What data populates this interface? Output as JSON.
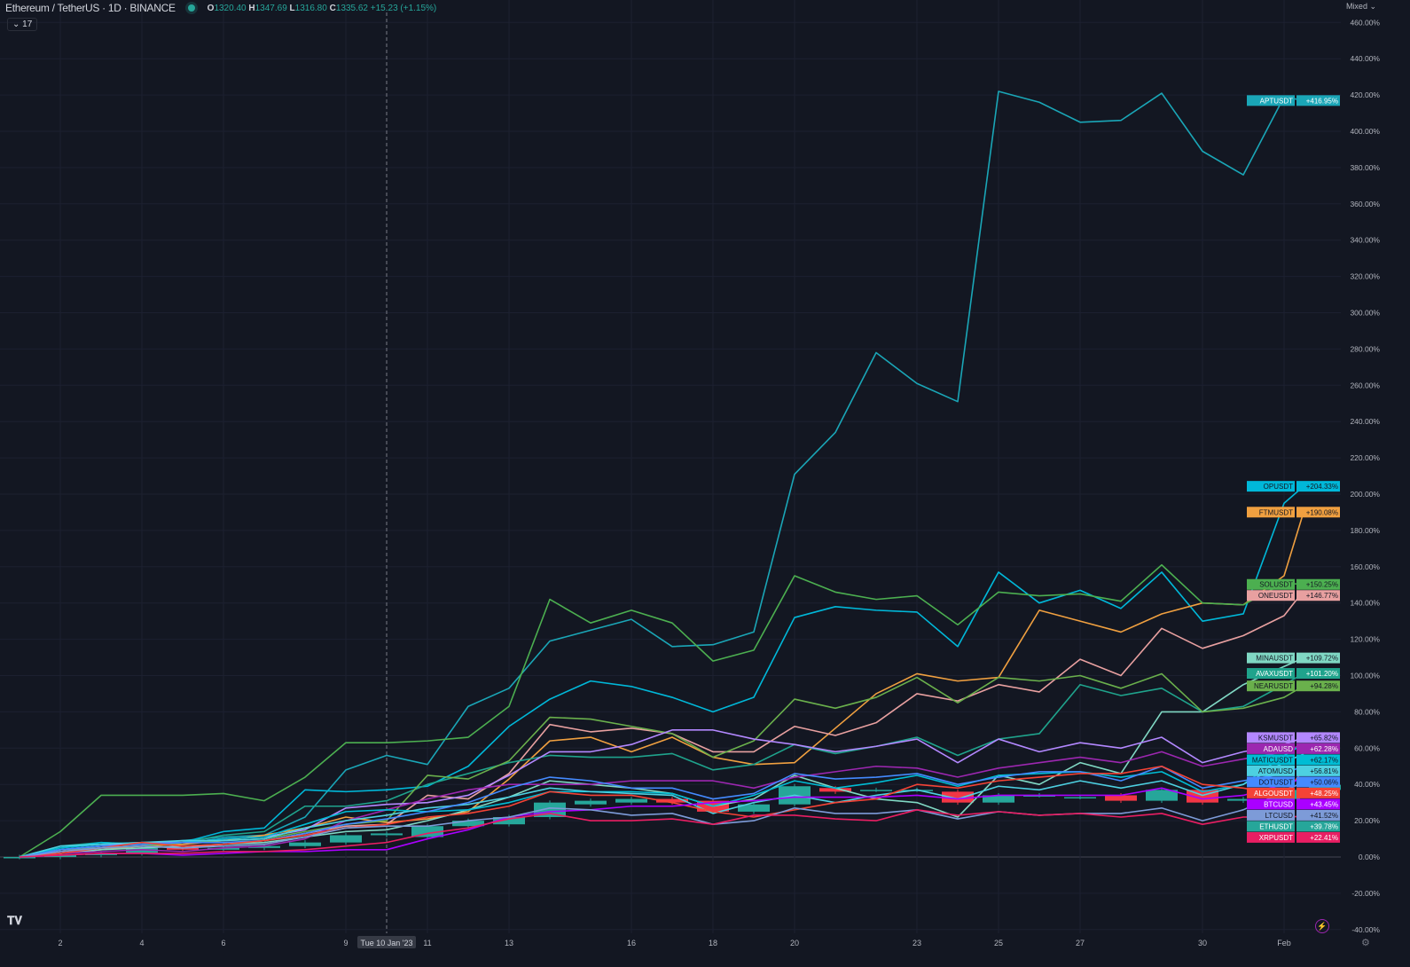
{
  "header": {
    "title": "Ethereum / TetherUS · 1D · BINANCE",
    "o_label": "O",
    "o": "1320.40",
    "h_label": "H",
    "h": "1347.69",
    "l_label": "L",
    "l": "1316.80",
    "c_label": "C",
    "c": "1335.62",
    "change": "+15.23 (+1.15%)",
    "collapse_count": "17"
  },
  "scale_mode": "Mixed",
  "logo": "TV",
  "colors": {
    "background": "#131722",
    "grid": "#1c2030",
    "up": "#26a69a",
    "down": "#f23645"
  },
  "chart_data": {
    "type": "line",
    "title": "",
    "xlabel": "",
    "ylabel": "",
    "y_unit": "%",
    "ylim": [
      -40,
      460
    ],
    "y_ticks": [
      -40,
      -20,
      0,
      20,
      40,
      60,
      80,
      100,
      120,
      140,
      160,
      180,
      200,
      220,
      240,
      260,
      280,
      300,
      320,
      340,
      360,
      380,
      400,
      420,
      440,
      460
    ],
    "grid": true,
    "x": [
      "Jan 1",
      "Jan 2",
      "Jan 3",
      "Jan 4",
      "Jan 5",
      "Jan 6",
      "Jan 7",
      "Jan 8",
      "Jan 9",
      "Jan 10",
      "Jan 11",
      "Jan 12",
      "Jan 13",
      "Jan 14",
      "Jan 15",
      "Jan 16",
      "Jan 17",
      "Jan 18",
      "Jan 19",
      "Jan 20",
      "Jan 21",
      "Jan 22",
      "Jan 23",
      "Jan 24",
      "Jan 25",
      "Jan 26",
      "Jan 27",
      "Jan 28",
      "Jan 29",
      "Jan 30",
      "Jan 31",
      "Feb 1",
      "Feb 2"
    ],
    "x_tick_labels": [
      {
        "index": 1,
        "label": "2"
      },
      {
        "index": 3,
        "label": "4"
      },
      {
        "index": 5,
        "label": "6"
      },
      {
        "index": 8,
        "label": "9"
      },
      {
        "index": 10,
        "label": "11"
      },
      {
        "index": 12,
        "label": "13"
      },
      {
        "index": 15,
        "label": "16"
      },
      {
        "index": 17,
        "label": "18"
      },
      {
        "index": 19,
        "label": "20"
      },
      {
        "index": 22,
        "label": "23"
      },
      {
        "index": 24,
        "label": "25"
      },
      {
        "index": 26,
        "label": "27"
      },
      {
        "index": 29,
        "label": "30"
      },
      {
        "index": 31,
        "label": "Feb"
      }
    ],
    "crosshair": {
      "index": 9,
      "label": "Tue 10 Jan '23"
    },
    "series": [
      {
        "name": "APTUSDT",
        "label": "+416.95%",
        "color": "#1aa6b7",
        "values": [
          0,
          4,
          6,
          7,
          9,
          11,
          12,
          22,
          48,
          56,
          51,
          83,
          93,
          119,
          125,
          131,
          116,
          117,
          124,
          211,
          234,
          278,
          261,
          251,
          422,
          416,
          405,
          406,
          421,
          389,
          376,
          419,
          416.95
        ]
      },
      {
        "name": "OPUSDT",
        "label": "+204.33%",
        "color": "#00b8d9",
        "values": [
          0,
          5,
          7,
          8,
          8,
          14,
          16,
          37,
          36,
          37,
          39,
          50,
          72,
          87,
          97,
          94,
          88,
          80,
          88,
          132,
          138,
          136,
          135,
          116,
          157,
          140,
          147,
          137,
          157,
          130,
          134,
          195,
          204.33
        ]
      },
      {
        "name": "FTMUSDT",
        "label": "+190.08%",
        "color": "#f0a040",
        "values": [
          0,
          2,
          4,
          6,
          7,
          9,
          12,
          16,
          22,
          19,
          21,
          25,
          43,
          64,
          66,
          58,
          66,
          55,
          51,
          52,
          71,
          90,
          101,
          97,
          99,
          136,
          130,
          124,
          134,
          140,
          139,
          155,
          190.08
        ]
      },
      {
        "name": "SOLUSDT",
        "label": "+150.25%",
        "color": "#4caf50",
        "values": [
          0,
          14,
          34,
          34,
          34,
          35,
          31,
          44,
          63,
          63,
          64,
          66,
          83,
          142,
          129,
          136,
          129,
          108,
          114,
          155,
          146,
          142,
          144,
          128,
          146,
          144,
          145,
          141,
          161,
          140,
          139,
          151,
          150.25
        ]
      },
      {
        "name": "ONEUSDT",
        "label": "+146.77%",
        "color": "#e8a0a0",
        "values": [
          0,
          3,
          5,
          6,
          5,
          7,
          9,
          13,
          17,
          18,
          34,
          32,
          46,
          73,
          69,
          71,
          68,
          58,
          58,
          72,
          67,
          74,
          90,
          86,
          95,
          91,
          109,
          100,
          126,
          115,
          122,
          133,
          146.77
        ]
      },
      {
        "name": "MINAUSDT",
        "label": "+109.72%",
        "color": "#80d8c4",
        "values": [
          0,
          2,
          4,
          5,
          6,
          7,
          8,
          11,
          14,
          15,
          20,
          26,
          33,
          42,
          40,
          38,
          35,
          28,
          32,
          45,
          38,
          32,
          30,
          22,
          45,
          40,
          52,
          46,
          80,
          80,
          95,
          105,
          109.72
        ]
      },
      {
        "name": "AVAXUSDT",
        "label": "+101.20%",
        "color": "#1fa38c",
        "values": [
          0,
          6,
          8,
          7,
          8,
          12,
          14,
          28,
          28,
          31,
          40,
          46,
          52,
          56,
          55,
          55,
          57,
          48,
          51,
          62,
          57,
          61,
          66,
          56,
          65,
          68,
          95,
          89,
          93,
          80,
          83,
          95,
          101.2
        ]
      },
      {
        "name": "NEARUSDT",
        "label": "+94.28%",
        "color": "#6ab04c",
        "values": [
          0,
          4,
          5,
          6,
          8,
          9,
          10,
          14,
          18,
          20,
          45,
          43,
          53,
          77,
          76,
          72,
          68,
          55,
          64,
          87,
          82,
          88,
          99,
          85,
          99,
          97,
          100,
          93,
          101,
          80,
          82,
          88,
          94.28
        ]
      },
      {
        "name": "KSMUSDT",
        "label": "+65.82%",
        "color": "#b388ff",
        "values": [
          0,
          4,
          6,
          8,
          8,
          10,
          11,
          15,
          27,
          29,
          30,
          34,
          45,
          58,
          58,
          62,
          70,
          70,
          65,
          62,
          58,
          61,
          65,
          52,
          65,
          58,
          63,
          60,
          66,
          52,
          58,
          62,
          65.82
        ]
      },
      {
        "name": "ADAUSD",
        "label": "+62.28%",
        "color": "#9c27b0",
        "values": [
          0,
          2,
          3,
          4,
          3,
          5,
          6,
          10,
          20,
          26,
          32,
          37,
          40,
          40,
          40,
          42,
          42,
          42,
          38,
          44,
          47,
          50,
          49,
          44,
          49,
          52,
          55,
          52,
          58,
          50,
          54,
          58,
          62.28
        ]
      },
      {
        "name": "MATICUSDT",
        "label": "+62.17%",
        "color": "#00bcd4",
        "values": [
          0,
          5,
          8,
          7,
          8,
          10,
          11,
          18,
          25,
          26,
          25,
          26,
          30,
          36,
          36,
          36,
          35,
          28,
          34,
          42,
          38,
          41,
          45,
          39,
          45,
          46,
          47,
          44,
          47,
          36,
          40,
          56,
          62.17
        ]
      },
      {
        "name": "ATOMUSD",
        "label": "+56.81%",
        "color": "#4dd0e1",
        "values": [
          0,
          6,
          7,
          8,
          9,
          9,
          10,
          16,
          20,
          23,
          27,
          29,
          33,
          38,
          36,
          35,
          34,
          24,
          30,
          34,
          30,
          34,
          37,
          32,
          39,
          37,
          42,
          38,
          42,
          34,
          40,
          52,
          56.81
        ]
      },
      {
        "name": "DOTUSDT",
        "label": "+50.06%",
        "color": "#448aff",
        "values": [
          0,
          4,
          6,
          7,
          8,
          8,
          9,
          13,
          18,
          21,
          25,
          30,
          38,
          44,
          42,
          38,
          38,
          32,
          35,
          46,
          43,
          44,
          46,
          40,
          44,
          47,
          47,
          42,
          50,
          38,
          42,
          46,
          50.06
        ]
      },
      {
        "name": "ALGOUSDT",
        "label": "+48.25%",
        "color": "#f44336",
        "values": [
          0,
          2,
          5,
          8,
          6,
          7,
          9,
          12,
          16,
          18,
          22,
          24,
          28,
          36,
          34,
          34,
          30,
          25,
          22,
          26,
          30,
          32,
          40,
          38,
          42,
          44,
          46,
          46,
          50,
          40,
          38,
          34,
          48.25
        ]
      },
      {
        "name": "BTCUSD",
        "label": "+43.45%",
        "color": "#aa00ff",
        "values": [
          0,
          1,
          2,
          2,
          1,
          2,
          3,
          3,
          4,
          4,
          10,
          15,
          22,
          25,
          26,
          28,
          28,
          30,
          31,
          33,
          33,
          33,
          34,
          32,
          34,
          34,
          34,
          34,
          38,
          32,
          34,
          40,
          43.45
        ]
      },
      {
        "name": "LTCUSD",
        "label": "+41.52%",
        "color": "#7d9bd8",
        "values": [
          0,
          3,
          5,
          6,
          5,
          6,
          7,
          11,
          16,
          17,
          17,
          20,
          22,
          27,
          26,
          23,
          24,
          18,
          20,
          27,
          24,
          24,
          26,
          21,
          25,
          23,
          24,
          24,
          27,
          20,
          26,
          36,
          41.52
        ]
      },
      {
        "name": "XRPUSDT",
        "label": "+22.41%",
        "color": "#e91e63",
        "values": [
          0,
          1,
          2,
          2,
          2,
          3,
          3,
          4,
          6,
          8,
          13,
          16,
          21,
          24,
          20,
          20,
          21,
          18,
          23,
          23,
          21,
          20,
          26,
          23,
          25,
          23,
          24,
          22,
          24,
          18,
          22,
          22,
          22.41
        ]
      }
    ],
    "main_series": {
      "name": "ETHUSDT",
      "label": "+39.78%",
      "type": "candlestick",
      "color": "#26a69a",
      "candles": [
        {
          "o": 0,
          "c": 0
        },
        {
          "o": 0,
          "c": 1
        },
        {
          "o": 1,
          "c": 2
        },
        {
          "o": 2,
          "c": 5
        },
        {
          "o": 5,
          "c": 4
        },
        {
          "o": 4,
          "c": 5
        },
        {
          "o": 5,
          "c": 6
        },
        {
          "o": 6,
          "c": 8
        },
        {
          "o": 8,
          "c": 12
        },
        {
          "o": 12,
          "c": 13
        },
        {
          "o": 11,
          "c": 17
        },
        {
          "o": 17,
          "c": 20
        },
        {
          "o": 18,
          "c": 22
        },
        {
          "o": 22,
          "c": 30
        },
        {
          "o": 29,
          "c": 31
        },
        {
          "o": 30,
          "c": 32
        },
        {
          "o": 32,
          "c": 30
        },
        {
          "o": 31,
          "c": 25
        },
        {
          "o": 25,
          "c": 29
        },
        {
          "o": 29,
          "c": 39
        },
        {
          "o": 38,
          "c": 36
        },
        {
          "o": 37,
          "c": 37
        },
        {
          "o": 37,
          "c": 37
        },
        {
          "o": 36,
          "c": 30
        },
        {
          "o": 30,
          "c": 34
        },
        {
          "o": 34,
          "c": 34
        },
        {
          "o": 33,
          "c": 33
        },
        {
          "o": 34,
          "c": 31
        },
        {
          "o": 31,
          "c": 37
        },
        {
          "o": 37,
          "c": 30
        },
        {
          "o": 31,
          "c": 32
        },
        {
          "o": 32,
          "c": 37
        },
        {
          "o": 37,
          "c": 39.78
        }
      ]
    }
  }
}
